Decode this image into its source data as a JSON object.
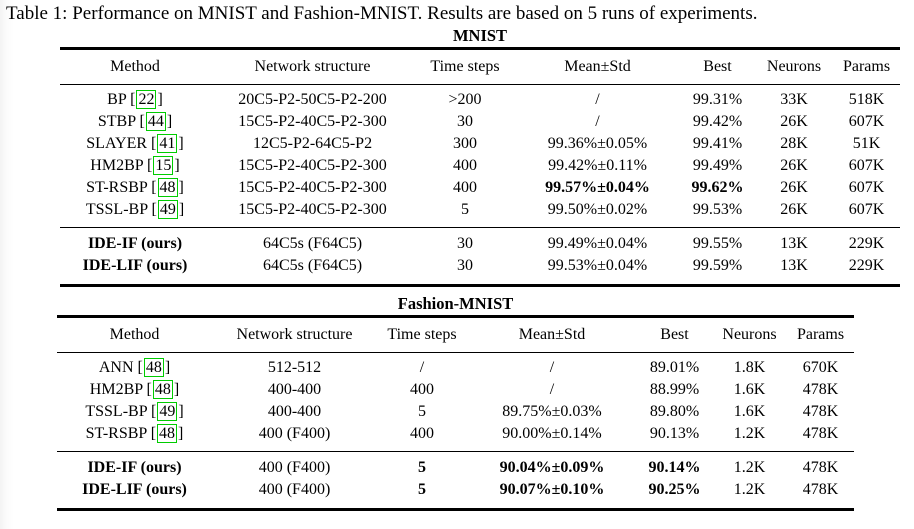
{
  "page": {
    "title": "Table 1: Performance on MNIST and Fashion-MNIST. Results are based on 5 runs of experiments."
  },
  "colors": {
    "text": "#000000",
    "background": "#ffffff",
    "citation_box": "#00cc00"
  },
  "tables": [
    {
      "name": "MNIST",
      "columns": [
        "Method",
        "Network structure",
        "Time steps",
        "Mean±Std",
        "Best",
        "Neurons",
        "Params"
      ],
      "groups": [
        {
          "rows": [
            {
              "method": "BP",
              "cite": "22",
              "method_bold": false,
              "cells": [
                {
                  "text": "20C5-P2-50C5-P2-200"
                },
                {
                  "text": ">200"
                },
                {
                  "text": "/"
                },
                {
                  "text": "99.31%"
                },
                {
                  "text": "33K"
                },
                {
                  "text": "518K"
                }
              ]
            },
            {
              "method": "STBP",
              "cite": "44",
              "method_bold": false,
              "cells": [
                {
                  "text": "15C5-P2-40C5-P2-300"
                },
                {
                  "text": "30"
                },
                {
                  "text": "/"
                },
                {
                  "text": "99.42%"
                },
                {
                  "text": "26K"
                },
                {
                  "text": "607K"
                }
              ]
            },
            {
              "method": "SLAYER",
              "cite": "41",
              "method_bold": false,
              "cells": [
                {
                  "text": "12C5-P2-64C5-P2"
                },
                {
                  "text": "300"
                },
                {
                  "text": "99.36%±0.05%"
                },
                {
                  "text": "99.41%"
                },
                {
                  "text": "28K"
                },
                {
                  "text": "51K"
                }
              ]
            },
            {
              "method": "HM2BP",
              "cite": "15",
              "method_bold": false,
              "cells": [
                {
                  "text": "15C5-P2-40C5-P2-300"
                },
                {
                  "text": "400"
                },
                {
                  "text": "99.42%±0.11%"
                },
                {
                  "text": "99.49%"
                },
                {
                  "text": "26K"
                },
                {
                  "text": "607K"
                }
              ]
            },
            {
              "method": "ST-RSBP",
              "cite": "48",
              "method_bold": false,
              "cells": [
                {
                  "text": "15C5-P2-40C5-P2-300"
                },
                {
                  "text": "400"
                },
                {
                  "text": "99.57%±0.04%",
                  "bold": true
                },
                {
                  "text": "99.62%",
                  "bold": true
                },
                {
                  "text": "26K"
                },
                {
                  "text": "607K"
                }
              ]
            },
            {
              "method": "TSSL-BP",
              "cite": "49",
              "method_bold": false,
              "cells": [
                {
                  "text": "15C5-P2-40C5-P2-300"
                },
                {
                  "text": "5"
                },
                {
                  "text": "99.50%±0.02%"
                },
                {
                  "text": "99.53%"
                },
                {
                  "text": "26K"
                },
                {
                  "text": "607K"
                }
              ]
            }
          ]
        },
        {
          "rows": [
            {
              "method": "IDE-IF (ours)",
              "method_bold": true,
              "cells": [
                {
                  "text": "64C5s (F64C5)"
                },
                {
                  "text": "30"
                },
                {
                  "text": "99.49%±0.04%"
                },
                {
                  "text": "99.55%"
                },
                {
                  "text": "13K"
                },
                {
                  "text": "229K"
                }
              ]
            },
            {
              "method": "IDE-LIF (ours)",
              "method_bold": true,
              "cells": [
                {
                  "text": "64C5s (F64C5)"
                },
                {
                  "text": "30"
                },
                {
                  "text": "99.53%±0.04%"
                },
                {
                  "text": "99.59%"
                },
                {
                  "text": "13K"
                },
                {
                  "text": "229K"
                }
              ]
            }
          ]
        }
      ]
    },
    {
      "name": "Fashion-MNIST",
      "columns": [
        "Method",
        "Network structure",
        "Time steps",
        "Mean±Std",
        "Best",
        "Neurons",
        "Params"
      ],
      "groups": [
        {
          "rows": [
            {
              "method": "ANN",
              "cite": "48",
              "method_bold": false,
              "cells": [
                {
                  "text": "512-512"
                },
                {
                  "text": "/"
                },
                {
                  "text": "/"
                },
                {
                  "text": "89.01%"
                },
                {
                  "text": "1.8K"
                },
                {
                  "text": "670K"
                }
              ]
            },
            {
              "method": "HM2BP",
              "cite": "48",
              "method_bold": false,
              "cells": [
                {
                  "text": "400-400"
                },
                {
                  "text": "400"
                },
                {
                  "text": "/"
                },
                {
                  "text": "88.99%"
                },
                {
                  "text": "1.6K"
                },
                {
                  "text": "478K"
                }
              ]
            },
            {
              "method": "TSSL-BP",
              "cite": "49",
              "method_bold": false,
              "cells": [
                {
                  "text": "400-400"
                },
                {
                  "text": "5"
                },
                {
                  "text": "89.75%±0.03%"
                },
                {
                  "text": "89.80%"
                },
                {
                  "text": "1.6K"
                },
                {
                  "text": "478K"
                }
              ]
            },
            {
              "method": "ST-RSBP",
              "cite": "48",
              "method_bold": false,
              "cells": [
                {
                  "text": "400 (F400)"
                },
                {
                  "text": "400"
                },
                {
                  "text": "90.00%±0.14%"
                },
                {
                  "text": "90.13%"
                },
                {
                  "text": "1.2K"
                },
                {
                  "text": "478K"
                }
              ]
            }
          ]
        },
        {
          "rows": [
            {
              "method": "IDE-IF (ours)",
              "method_bold": true,
              "cells": [
                {
                  "text": "400 (F400)"
                },
                {
                  "text": "5",
                  "bold": true
                },
                {
                  "text": "90.04%±0.09%",
                  "bold": true
                },
                {
                  "text": "90.14%",
                  "bold": true
                },
                {
                  "text": "1.2K"
                },
                {
                  "text": "478K"
                }
              ]
            },
            {
              "method": "IDE-LIF (ours)",
              "method_bold": true,
              "cells": [
                {
                  "text": "400 (F400)"
                },
                {
                  "text": "5",
                  "bold": true
                },
                {
                  "text": "90.07%±0.10%",
                  "bold": true
                },
                {
                  "text": "90.25%",
                  "bold": true
                },
                {
                  "text": "1.2K"
                },
                {
                  "text": "478K"
                }
              ]
            }
          ]
        }
      ]
    }
  ]
}
